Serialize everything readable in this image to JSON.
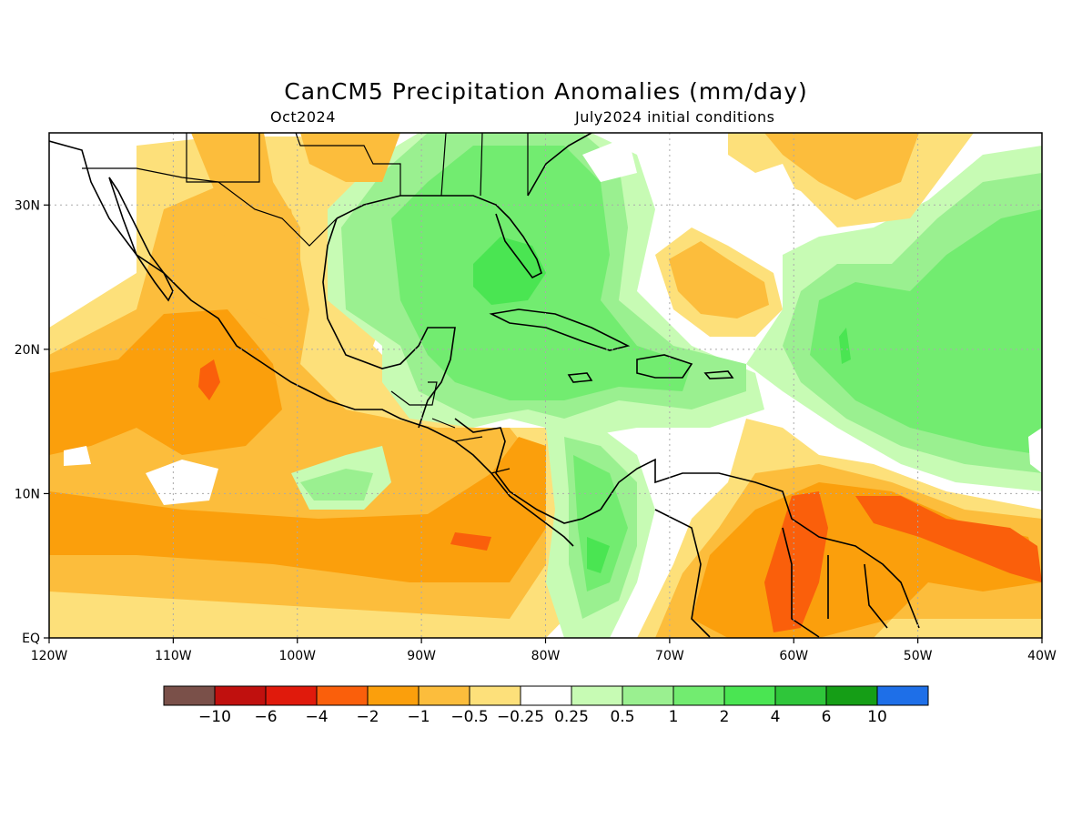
{
  "title": "CanCM5 Precipitation Anomalies (mm/day)",
  "subtitle_left": "Oct2024",
  "subtitle_right": "July2024 initial conditions",
  "map": {
    "lon_range": [
      -120,
      -40
    ],
    "lat_range": [
      0,
      35
    ],
    "x_tick_labels": [
      "120W",
      "110W",
      "100W",
      "90W",
      "80W",
      "70W",
      "60W",
      "50W",
      "40W"
    ],
    "y_tick_labels": [
      "EQ",
      "10N",
      "20N",
      "30N"
    ],
    "grid": "dotted"
  },
  "colorbar": {
    "colors": [
      "#7a5049",
      "#c0100e",
      "#e01a0c",
      "#fa5f0b",
      "#fb9f0c",
      "#fcbd3c",
      "#fde07a",
      "#ffffff",
      "#c7fbb4",
      "#9af090",
      "#72ec70",
      "#4ae552",
      "#2fc63a",
      "#159e16",
      "#1e6fe8"
    ],
    "labels": [
      "−10",
      "−6",
      "−4",
      "−2",
      "−1",
      "−0.5",
      "−0.25",
      "0.25",
      "0.5",
      "1",
      "2",
      "4",
      "6",
      "10"
    ]
  }
}
